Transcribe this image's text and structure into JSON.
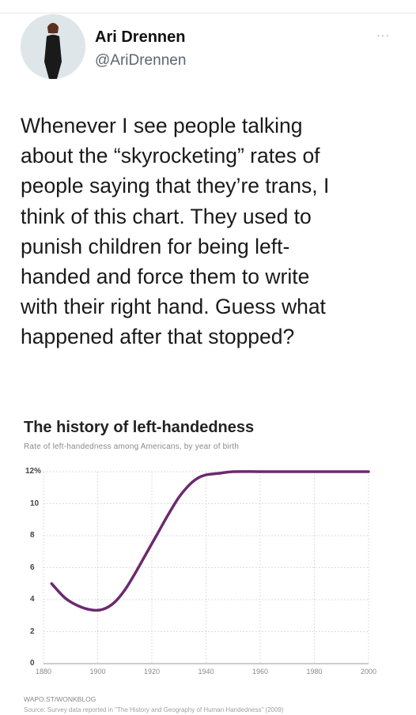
{
  "tweet": {
    "author_name": "Ari Drennen",
    "author_handle": "@AriDrennen",
    "more_icon": "···",
    "text": "Whenever I see people talking\nabout the “skyrocketing” rates of\npeople saying that they’re trans, I\nthink of this chart. They used to\npunish children for being left-\nhanded and force them to write\nwith their right hand. Guess what\nhappened after that stopped?"
  },
  "chart": {
    "title": "The history of left-handedness",
    "subtitle": "Rate of left-handedness among Americans, by year of birth",
    "footer_brand": "WAPO.ST/WONKBLOG",
    "footer_source": "Source: Survey data reported in \"The History and Geography of Human Handedness\" (2009)"
  },
  "chart_data": {
    "type": "line",
    "title": "The history of left-handedness",
    "subtitle": "Rate of left-handedness among Americans, by year of birth",
    "xlabel": "",
    "ylabel": "",
    "x_ticks": [
      "1880",
      "1900",
      "1920",
      "1940",
      "1960",
      "1980",
      "2000"
    ],
    "y_ticks": [
      "0",
      "2",
      "4",
      "6",
      "8",
      "10",
      "12%"
    ],
    "xlim": [
      1880,
      2000
    ],
    "ylim": [
      0,
      12
    ],
    "grid": true,
    "series": [
      {
        "color": "#6b2a6e",
        "x": [
          1883,
          1888,
          1893,
          1898,
          1902,
          1906,
          1910,
          1914,
          1918,
          1922,
          1926,
          1930,
          1934,
          1937,
          1940,
          1945,
          1950,
          1960,
          1970,
          1980,
          1990,
          2000
        ],
        "y": [
          5.0,
          4.1,
          3.6,
          3.35,
          3.4,
          3.8,
          4.6,
          5.7,
          6.9,
          8.1,
          9.3,
          10.4,
          11.2,
          11.6,
          11.8,
          11.9,
          12.0,
          12.0,
          12.0,
          12.0,
          12.0,
          12.0
        ]
      }
    ]
  }
}
